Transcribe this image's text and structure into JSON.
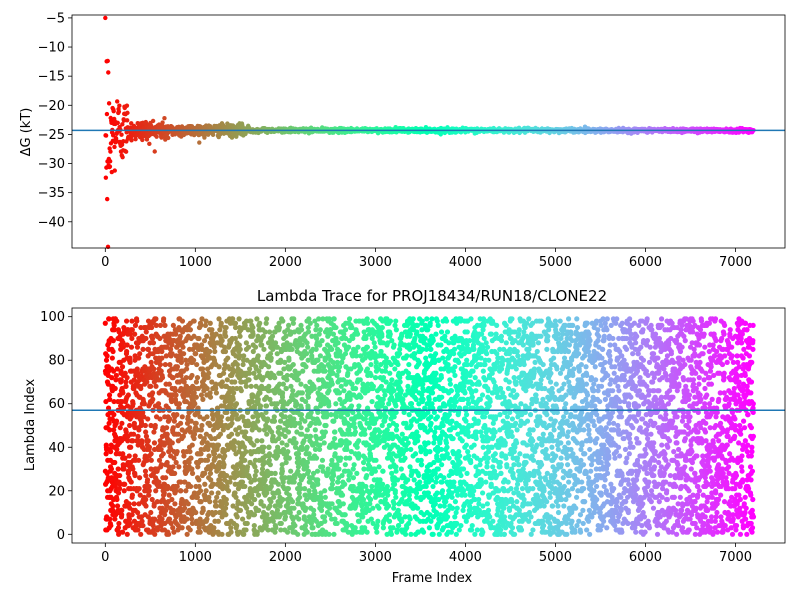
{
  "chart_data": [
    {
      "type": "scatter",
      "title": "",
      "xlabel": "",
      "ylabel": "ΔG (kT)",
      "xlim": [
        -370,
        7550
      ],
      "ylim": [
        -44.5,
        -4.5
      ],
      "xticks": [
        0,
        1000,
        2000,
        3000,
        4000,
        5000,
        6000,
        7000
      ],
      "yticks": [
        -40,
        -35,
        -30,
        -25,
        -20,
        -15,
        -10,
        -5
      ],
      "colormap": "rainbow (red at frame 0 → violet at frame 7200)",
      "hline": {
        "y": -24.3,
        "color": "#1f77b4"
      },
      "x_max_frame": 7200,
      "series": [
        {
          "description": "running free-energy estimate per frame",
          "trend": [
            {
              "x": 0,
              "y": -6
            },
            {
              "x": 10,
              "y": -10
            },
            {
              "x": 20,
              "y": -44
            },
            {
              "x": 50,
              "y": -14
            },
            {
              "x": 100,
              "y": -20
            },
            {
              "x": 150,
              "y": -27
            },
            {
              "x": 200,
              "y": -22
            },
            {
              "x": 300,
              "y": -25
            },
            {
              "x": 500,
              "y": -24
            },
            {
              "x": 700,
              "y": -25
            },
            {
              "x": 1000,
              "y": -24
            },
            {
              "x": 2000,
              "y": -24.3
            },
            {
              "x": 4000,
              "y": -24.3
            },
            {
              "x": 7200,
              "y": -24.3
            }
          ]
        }
      ]
    },
    {
      "type": "scatter",
      "title": "Lambda Trace for PROJ18434/RUN18/CLONE22",
      "xlabel": "Frame Index",
      "ylabel": "Lambda Index",
      "xlim": [
        -370,
        7550
      ],
      "ylim": [
        -4,
        104
      ],
      "xticks": [
        0,
        1000,
        2000,
        3000,
        4000,
        5000,
        6000,
        7000
      ],
      "yticks": [
        0,
        20,
        40,
        60,
        80,
        100
      ],
      "colormap": "rainbow (red at frame 0 → violet at frame 7200)",
      "hline": {
        "y": 57,
        "color": "#1f77b4"
      },
      "lambda_range": [
        0,
        99
      ],
      "x_max_frame": 7200,
      "sample_points": [
        {
          "x": 0,
          "y": 5
        },
        {
          "x": 10,
          "y": 95
        },
        {
          "x": 20,
          "y": 12
        },
        {
          "x": 500,
          "y": 60
        },
        {
          "x": 1500,
          "y": 30
        },
        {
          "x": 3000,
          "y": 80
        },
        {
          "x": 4500,
          "y": 10
        },
        {
          "x": 6000,
          "y": 50
        },
        {
          "x": 7200,
          "y": 99
        }
      ]
    }
  ]
}
